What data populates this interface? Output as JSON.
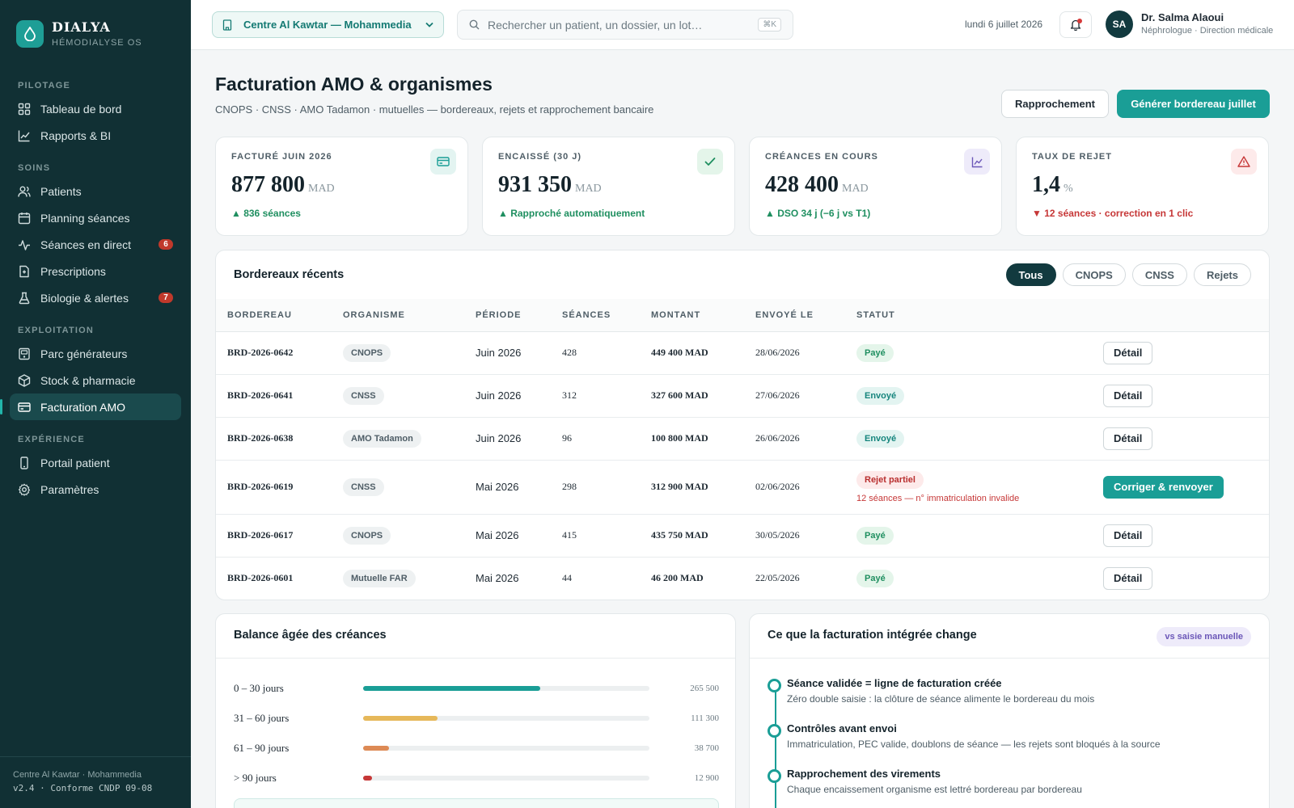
{
  "app": {
    "name": "DIALYA",
    "subtitle": "HÉMODIALYSE OS"
  },
  "sidebar": {
    "sections": [
      {
        "title": "PILOTAGE",
        "items": [
          {
            "label": "Tableau de bord",
            "icon": "dashboard-icon"
          },
          {
            "label": "Rapports & BI",
            "icon": "chart-line-icon"
          }
        ]
      },
      {
        "title": "SOINS",
        "items": [
          {
            "label": "Patients",
            "icon": "users-icon"
          },
          {
            "label": "Planning séances",
            "icon": "calendar-icon"
          },
          {
            "label": "Séances en direct",
            "icon": "activity-icon",
            "badge": "6"
          },
          {
            "label": "Prescriptions",
            "icon": "prescription-icon"
          },
          {
            "label": "Biologie & alertes",
            "icon": "flask-icon",
            "badge": "7"
          }
        ]
      },
      {
        "title": "EXPLOITATION",
        "items": [
          {
            "label": "Parc générateurs",
            "icon": "machine-icon"
          },
          {
            "label": "Stock & pharmacie",
            "icon": "box-icon"
          },
          {
            "label": "Facturation AMO",
            "icon": "credit-card-icon",
            "active": true
          }
        ]
      },
      {
        "title": "EXPÉRIENCE",
        "items": [
          {
            "label": "Portail patient",
            "icon": "smartphone-icon"
          },
          {
            "label": "Paramètres",
            "icon": "gear-icon"
          }
        ]
      }
    ],
    "footer": {
      "center": "Centre Al Kawtar · Mohammedia",
      "version": "v2.4 · Conforme CNDP 09-08"
    }
  },
  "topbar": {
    "center_select": "Centre Al Kawtar — Mohammedia",
    "search_placeholder": "Rechercher un patient, un dossier, un lot…",
    "search_shortcut": "⌘K",
    "date": "lundi 6 juillet 2026",
    "user": {
      "initials": "SA",
      "name": "Dr. Salma Alaoui",
      "role": "Néphrologue · Direction médicale"
    }
  },
  "page": {
    "title": "Facturation AMO & organismes",
    "subtitle": "CNOPS · CNSS · AMO Tadamon · mutuelles — bordereaux, rejets et rapprochement bancaire",
    "actions": {
      "secondary": "Rapprochement",
      "primary": "Générer bordereau juillet"
    }
  },
  "kpis": [
    {
      "label": "FACTURÉ JUIN 2026",
      "value": "877 800",
      "unit": "MAD",
      "delta": "▲ 836 séances",
      "trend": "up",
      "icon": "credit-card-icon",
      "icon_bg": "#e3f4f1",
      "icon_color": "#1a9e96"
    },
    {
      "label": "ENCAISSÉ (30 J)",
      "value": "931 350",
      "unit": "MAD",
      "delta": "▲ Rapproché automatiquement",
      "trend": "up",
      "icon": "check-icon",
      "icon_bg": "#e4f5ea",
      "icon_color": "#1f8f60"
    },
    {
      "label": "CRÉANCES EN COURS",
      "value": "428 400",
      "unit": "MAD",
      "delta": "▲ DSO 34 j (−6 j vs T1)",
      "trend": "up",
      "icon": "trend-chart-icon",
      "icon_bg": "#eeebfa",
      "icon_color": "#6b57b8"
    },
    {
      "label": "TAUX DE REJET",
      "value": "1,4",
      "unit": "%",
      "delta": "▼ 12 séances · correction en 1 clic",
      "trend": "down",
      "icon": "warning-icon",
      "icon_bg": "#fdeaea",
      "icon_color": "#c63737"
    }
  ],
  "bordereaux": {
    "title": "Bordereaux récents",
    "filters": [
      "Tous",
      "CNOPS",
      "CNSS",
      "Rejets"
    ],
    "active_filter": "Tous",
    "columns": [
      "BORDEREAU",
      "ORGANISME",
      "PÉRIODE",
      "SÉANCES",
      "MONTANT",
      "ENVOYÉ LE",
      "STATUT",
      ""
    ],
    "rows": [
      {
        "ref": "BRD-2026-0642",
        "org": "CNOPS",
        "period": "Juin 2026",
        "sessions": "428",
        "amount": "449 400 MAD",
        "sent": "28/06/2026",
        "status": "Payé",
        "status_kind": "paid",
        "action": "Détail"
      },
      {
        "ref": "BRD-2026-0641",
        "org": "CNSS",
        "period": "Juin 2026",
        "sessions": "312",
        "amount": "327 600 MAD",
        "sent": "27/06/2026",
        "status": "Envoyé",
        "status_kind": "sent",
        "action": "Détail"
      },
      {
        "ref": "BRD-2026-0638",
        "org": "AMO Tadamon",
        "period": "Juin 2026",
        "sessions": "96",
        "amount": "100 800 MAD",
        "sent": "26/06/2026",
        "status": "Envoyé",
        "status_kind": "sent",
        "action": "Détail"
      },
      {
        "ref": "BRD-2026-0619",
        "org": "CNSS",
        "period": "Mai 2026",
        "sessions": "298",
        "amount": "312 900 MAD",
        "sent": "02/06/2026",
        "status": "Rejet partiel",
        "status_kind": "reject",
        "status_note": "12 séances — n° immatriculation invalide",
        "action": "Corriger & renvoyer"
      },
      {
        "ref": "BRD-2026-0617",
        "org": "CNOPS",
        "period": "Mai 2026",
        "sessions": "415",
        "amount": "435 750 MAD",
        "sent": "30/05/2026",
        "status": "Payé",
        "status_kind": "paid",
        "action": "Détail"
      },
      {
        "ref": "BRD-2026-0601",
        "org": "Mutuelle FAR",
        "period": "Mai 2026",
        "sessions": "44",
        "amount": "46 200 MAD",
        "sent": "22/05/2026",
        "status": "Payé",
        "status_kind": "paid",
        "action": "Détail"
      }
    ]
  },
  "aging": {
    "title": "Balance âgée des créances",
    "max": 428400,
    "buckets": [
      {
        "label": "0 – 30 jours",
        "value": 265500,
        "display": "265 500",
        "color": "#1a9e96"
      },
      {
        "label": "31 – 60 jours",
        "value": 111300,
        "display": "111 300",
        "color": "#e6b85a"
      },
      {
        "label": "61 – 90 jours",
        "value": 38700,
        "display": "38 700",
        "color": "#dd8a55"
      },
      {
        "label": "> 90 jours",
        "value": 12900,
        "display": "12 900",
        "color": "#c63737"
      }
    ]
  },
  "integration": {
    "title": "Ce que la facturation intégrée change",
    "badge": "vs saisie manuelle",
    "items": [
      {
        "title": "Séance validée = ligne de facturation créée",
        "desc": "Zéro double saisie : la clôture de séance alimente le bordereau du mois"
      },
      {
        "title": "Contrôles avant envoi",
        "desc": "Immatriculation, PEC valide, doublons de séance — les rejets sont bloqués à la source"
      },
      {
        "title": "Rapprochement des virements",
        "desc": "Chaque encaissement organisme est lettré bordereau par bordereau"
      }
    ]
  }
}
